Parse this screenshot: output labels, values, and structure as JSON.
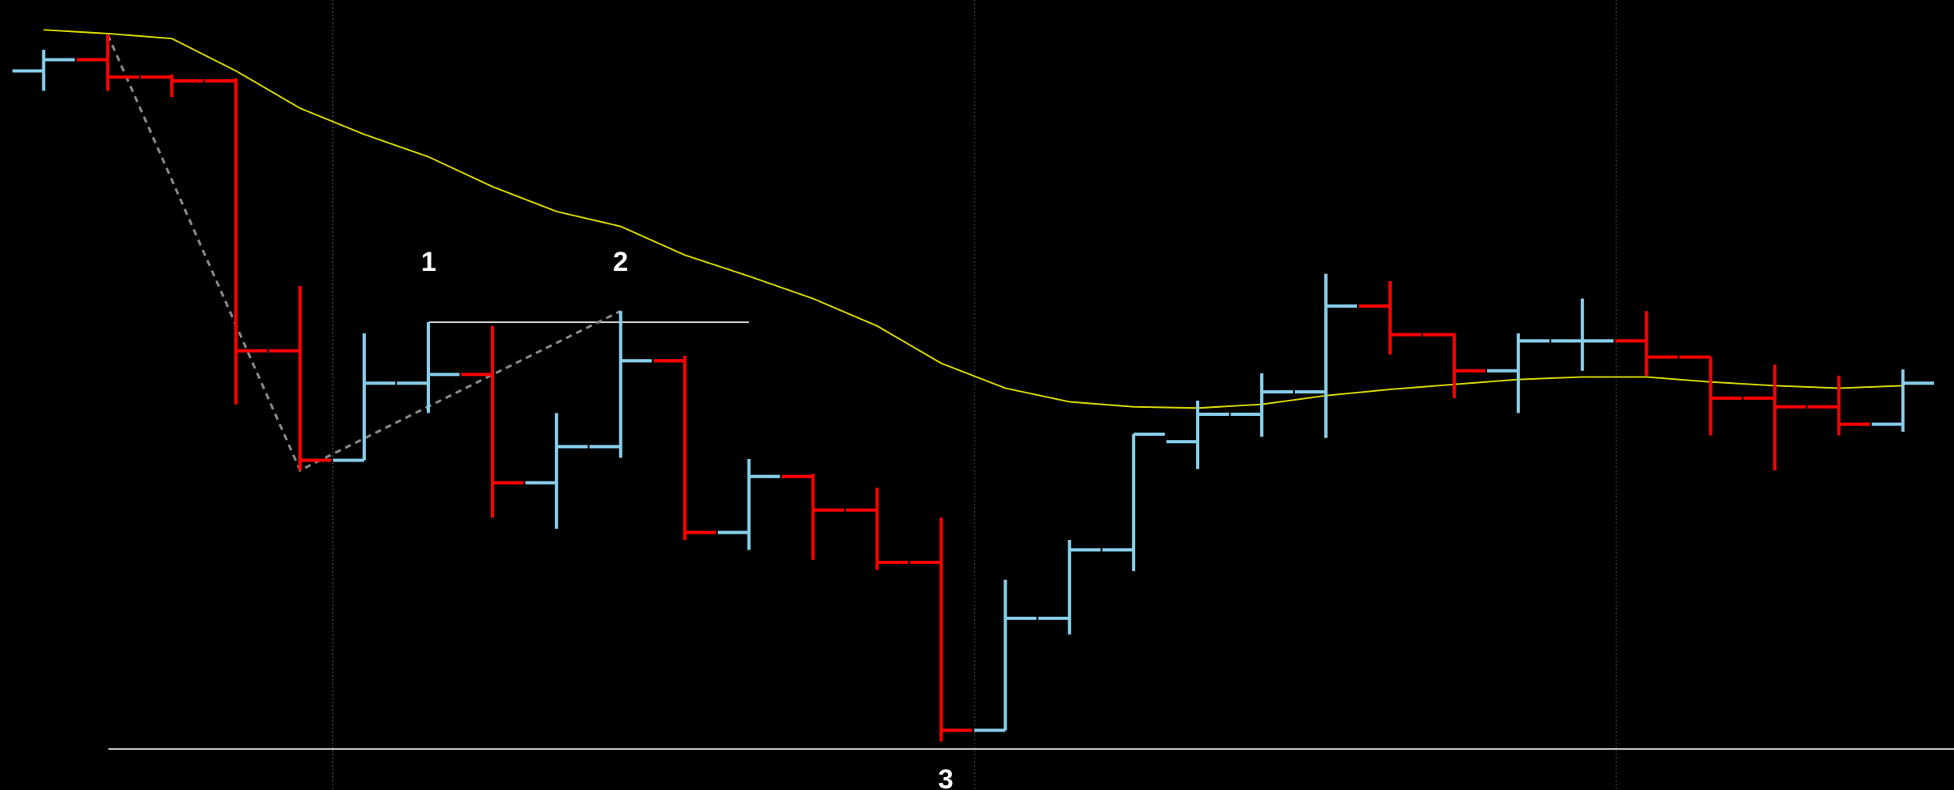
{
  "chart_data": {
    "type": "ohlc",
    "ylim": [
      0,
      635
    ],
    "up_color": "#87ceeb",
    "down_color": "#ff0000",
    "ma_color": "#d4d400",
    "series": [
      {
        "name": "open",
        "values": [
          578,
          587,
          573,
          570,
          353,
          265,
          327,
          334,
          247,
          276,
          345,
          207,
          252,
          225,
          183,
          48,
          138,
          193,
          280,
          302,
          320,
          389,
          366,
          337,
          361,
          361,
          348,
          315,
          308,
          294
        ]
      },
      {
        "name": "high",
        "values": [
          595,
          607,
          575,
          572,
          405,
          367,
          376,
          373,
          303,
          385,
          349,
          266,
          254,
          243,
          219,
          169,
          201,
          286,
          313,
          335,
          415,
          409,
          367,
          367,
          395,
          385,
          348,
          342,
          333,
          338
        ]
      },
      {
        "name": "low",
        "values": [
          562,
          562,
          557,
          310,
          257,
          265,
          303,
          219,
          210,
          267,
          201,
          193,
          185,
          177,
          39,
          48,
          125,
          176,
          258,
          284,
          283,
          350,
          315,
          303,
          337,
          333,
          285,
          257,
          285,
          288
        ]
      },
      {
        "name": "close",
        "values": [
          587,
          573,
          570,
          353,
          265,
          327,
          334,
          247,
          276,
          345,
          207,
          252,
          225,
          183,
          48,
          138,
          193,
          286,
          302,
          320,
          389,
          366,
          337,
          361,
          361,
          348,
          315,
          308,
          294,
          327
        ]
      },
      {
        "name": "ma",
        "values": [
          611,
          608,
          604,
          578,
          548,
          527,
          509,
          485,
          465,
          453,
          430,
          413,
          395,
          373,
          343,
          323,
          312,
          308,
          307,
          310,
          317,
          322,
          326,
          330,
          332,
          332,
          328,
          325,
          323,
          325
        ]
      }
    ],
    "hlines": [
      376,
      33
    ],
    "annotations": [
      "1",
      "2",
      "3"
    ]
  }
}
